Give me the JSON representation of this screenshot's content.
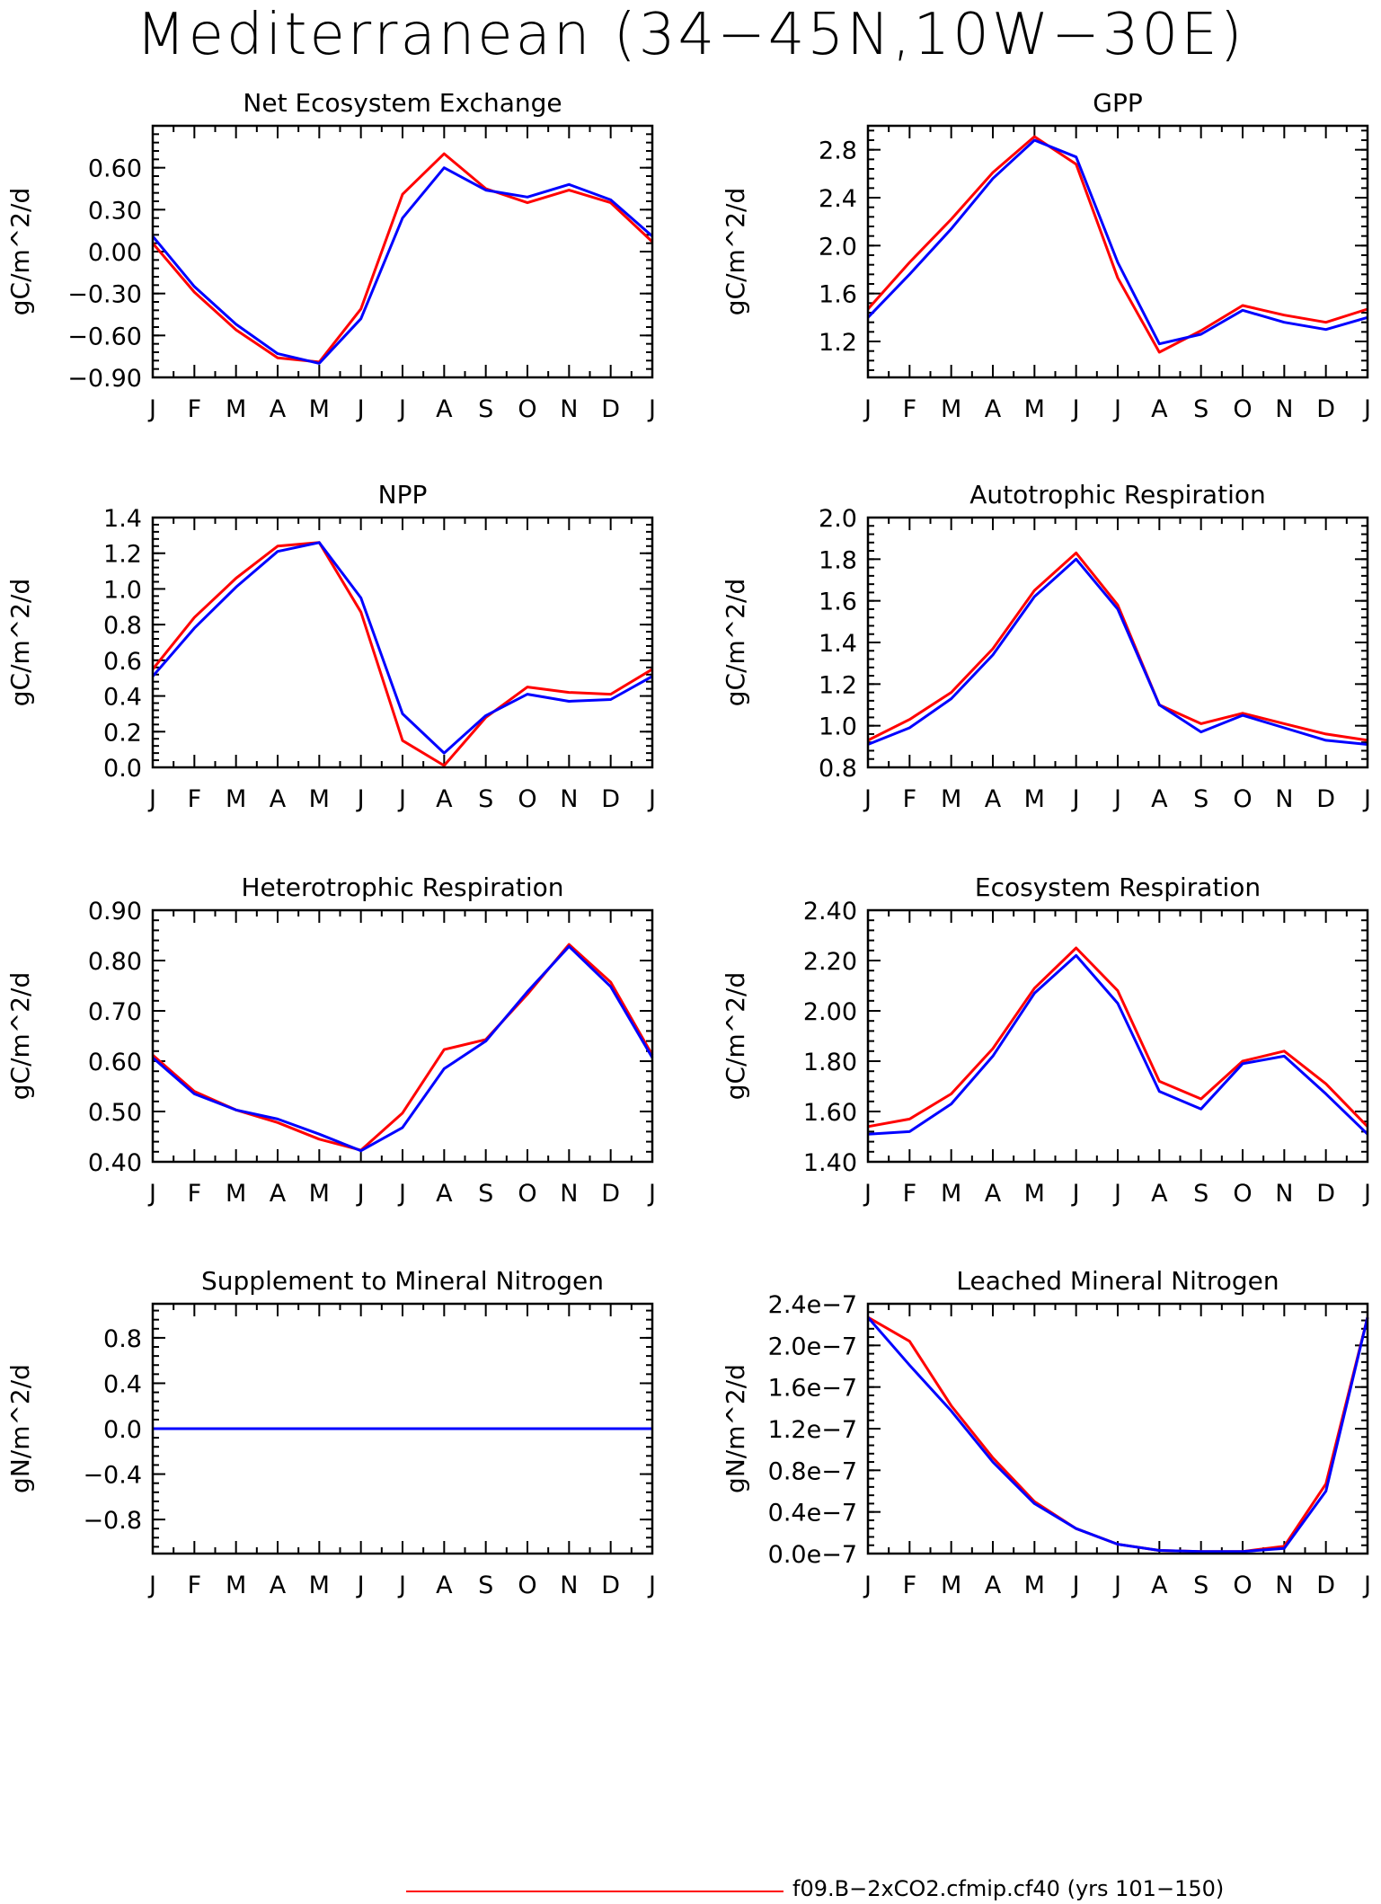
{
  "figure": {
    "title": "Mediterranean (34−45N,10W−30E)"
  },
  "legend": {
    "entries": [
      {
        "label": "f09.B−2xCO2.cfmip.cf40 (yrs 101−150)",
        "color": "#ff0000"
      }
    ]
  },
  "colors": {
    "series_a": "#ff0000",
    "series_b": "#0000ff"
  },
  "chart_data": [
    {
      "type": "line",
      "title": "Net Ecosystem Exchange",
      "ylabel": "gC/m^2/d",
      "categories": [
        "J",
        "F",
        "M",
        "A",
        "M",
        "J",
        "J",
        "A",
        "S",
        "O",
        "N",
        "D",
        "J"
      ],
      "ylim": [
        -0.9,
        0.9
      ],
      "yticks": [
        -0.9,
        -0.6,
        -0.3,
        0.0,
        0.3,
        0.6
      ],
      "ytick_labels": [
        "−0.90",
        "−0.60",
        "−0.30",
        "0.00",
        "0.30",
        "0.60"
      ],
      "series": [
        {
          "color": "#ff0000",
          "values": [
            0.06,
            -0.29,
            -0.56,
            -0.76,
            -0.79,
            -0.41,
            0.41,
            0.7,
            0.45,
            0.35,
            0.44,
            0.35,
            0.07
          ]
        },
        {
          "color": "#0000ff",
          "values": [
            0.11,
            -0.25,
            -0.52,
            -0.73,
            -0.8,
            -0.48,
            0.24,
            0.6,
            0.44,
            0.39,
            0.48,
            0.37,
            0.11
          ]
        }
      ]
    },
    {
      "type": "line",
      "title": "GPP",
      "ylabel": "gC/m^2/d",
      "categories": [
        "J",
        "F",
        "M",
        "A",
        "M",
        "J",
        "J",
        "A",
        "S",
        "O",
        "N",
        "D",
        "J"
      ],
      "ylim": [
        0.9,
        3.0
      ],
      "yticks": [
        1.2,
        1.6,
        2.0,
        2.4,
        2.8
      ],
      "ytick_labels": [
        "1.2",
        "1.6",
        "2.0",
        "2.4",
        "2.8"
      ],
      "series": [
        {
          "color": "#ff0000",
          "values": [
            1.47,
            1.86,
            2.22,
            2.61,
            2.91,
            2.68,
            1.73,
            1.11,
            1.29,
            1.5,
            1.42,
            1.36,
            1.47
          ]
        },
        {
          "color": "#0000ff",
          "values": [
            1.4,
            1.76,
            2.14,
            2.56,
            2.88,
            2.74,
            1.86,
            1.18,
            1.26,
            1.46,
            1.36,
            1.3,
            1.4
          ]
        }
      ]
    },
    {
      "type": "line",
      "title": "NPP",
      "ylabel": "gC/m^2/d",
      "categories": [
        "J",
        "F",
        "M",
        "A",
        "M",
        "J",
        "J",
        "A",
        "S",
        "O",
        "N",
        "D",
        "J"
      ],
      "ylim": [
        0.0,
        1.4
      ],
      "yticks": [
        0.0,
        0.2,
        0.4,
        0.6,
        0.8,
        1.0,
        1.2,
        1.4
      ],
      "ytick_labels": [
        "0.0",
        "0.2",
        "0.4",
        "0.6",
        "0.8",
        "1.0",
        "1.2",
        "1.4"
      ],
      "series": [
        {
          "color": "#ff0000",
          "values": [
            0.55,
            0.84,
            1.06,
            1.24,
            1.26,
            0.87,
            0.15,
            0.01,
            0.28,
            0.45,
            0.42,
            0.41,
            0.55
          ]
        },
        {
          "color": "#0000ff",
          "values": [
            0.51,
            0.78,
            1.01,
            1.21,
            1.26,
            0.95,
            0.3,
            0.08,
            0.29,
            0.41,
            0.37,
            0.38,
            0.51
          ]
        }
      ]
    },
    {
      "type": "line",
      "title": "Autotrophic Respiration",
      "ylabel": "gC/m^2/d",
      "categories": [
        "J",
        "F",
        "M",
        "A",
        "M",
        "J",
        "J",
        "A",
        "S",
        "O",
        "N",
        "D",
        "J"
      ],
      "ylim": [
        0.8,
        2.0
      ],
      "yticks": [
        0.8,
        1.0,
        1.2,
        1.4,
        1.6,
        1.8,
        2.0
      ],
      "ytick_labels": [
        "0.8",
        "1.0",
        "1.2",
        "1.4",
        "1.6",
        "1.8",
        "2.0"
      ],
      "series": [
        {
          "color": "#ff0000",
          "values": [
            0.93,
            1.03,
            1.16,
            1.37,
            1.65,
            1.83,
            1.58,
            1.1,
            1.01,
            1.06,
            1.01,
            0.96,
            0.93
          ]
        },
        {
          "color": "#0000ff",
          "values": [
            0.91,
            0.99,
            1.13,
            1.34,
            1.62,
            1.8,
            1.56,
            1.1,
            0.97,
            1.05,
            0.99,
            0.93,
            0.91
          ]
        }
      ]
    },
    {
      "type": "line",
      "title": "Heterotrophic Respiration",
      "ylabel": "gC/m^2/d",
      "categories": [
        "J",
        "F",
        "M",
        "A",
        "M",
        "J",
        "J",
        "A",
        "S",
        "O",
        "N",
        "D",
        "J"
      ],
      "ylim": [
        0.4,
        0.9
      ],
      "yticks": [
        0.4,
        0.5,
        0.6,
        0.7,
        0.8,
        0.9
      ],
      "ytick_labels": [
        "0.40",
        "0.50",
        "0.60",
        "0.70",
        "0.80",
        "0.90"
      ],
      "series": [
        {
          "color": "#ff0000",
          "values": [
            0.612,
            0.54,
            0.503,
            0.478,
            0.445,
            0.423,
            0.497,
            0.623,
            0.643,
            0.733,
            0.832,
            0.757,
            0.612
          ]
        },
        {
          "color": "#0000ff",
          "values": [
            0.607,
            0.535,
            0.503,
            0.485,
            0.455,
            0.422,
            0.468,
            0.585,
            0.64,
            0.738,
            0.828,
            0.748,
            0.607
          ]
        }
      ]
    },
    {
      "type": "line",
      "title": "Ecosystem Respiration",
      "ylabel": "gC/m^2/d",
      "categories": [
        "J",
        "F",
        "M",
        "A",
        "M",
        "J",
        "J",
        "A",
        "S",
        "O",
        "N",
        "D",
        "J"
      ],
      "ylim": [
        1.4,
        2.4
      ],
      "yticks": [
        1.4,
        1.6,
        1.8,
        2.0,
        2.2,
        2.4
      ],
      "ytick_labels": [
        "1.40",
        "1.60",
        "1.80",
        "2.00",
        "2.20",
        "2.40"
      ],
      "series": [
        {
          "color": "#ff0000",
          "values": [
            1.54,
            1.57,
            1.67,
            1.85,
            2.09,
            2.25,
            2.08,
            1.72,
            1.65,
            1.8,
            1.84,
            1.71,
            1.54
          ]
        },
        {
          "color": "#0000ff",
          "values": [
            1.51,
            1.52,
            1.63,
            1.82,
            2.07,
            2.22,
            2.03,
            1.68,
            1.61,
            1.79,
            1.82,
            1.67,
            1.51
          ]
        }
      ]
    },
    {
      "type": "line",
      "title": "Supplement to Mineral Nitrogen",
      "ylabel": "gN/m^2/d",
      "categories": [
        "J",
        "F",
        "M",
        "A",
        "M",
        "J",
        "J",
        "A",
        "S",
        "O",
        "N",
        "D",
        "J"
      ],
      "ylim": [
        -1.1,
        1.1
      ],
      "yticks": [
        -0.8,
        -0.4,
        0.0,
        0.4,
        0.8
      ],
      "ytick_labels": [
        "−0.8",
        "−0.4",
        "0.0",
        "0.4",
        "0.8"
      ],
      "series": [
        {
          "color": "#ff0000",
          "values": [
            0,
            0,
            0,
            0,
            0,
            0,
            0,
            0,
            0,
            0,
            0,
            0,
            0
          ]
        },
        {
          "color": "#0000ff",
          "values": [
            0,
            0,
            0,
            0,
            0,
            0,
            0,
            0,
            0,
            0,
            0,
            0,
            0
          ]
        }
      ]
    },
    {
      "type": "line",
      "title": "Leached Mineral Nitrogen",
      "ylabel": "gN/m^2/d",
      "categories": [
        "J",
        "F",
        "M",
        "A",
        "M",
        "J",
        "J",
        "A",
        "S",
        "O",
        "N",
        "D",
        "J"
      ],
      "ylim": [
        0.0,
        2.4e-07
      ],
      "yticks": [
        0.0,
        4e-08,
        8e-08,
        1.2e-07,
        1.6e-07,
        2e-07,
        2.4e-07
      ],
      "ytick_labels": [
        "0.0e−7",
        "0.4e−7",
        "0.8e−7",
        "1.2e−7",
        "1.6e−7",
        "2.0e−7",
        "2.4e−7"
      ],
      "series": [
        {
          "color": "#ff0000",
          "values": [
            2.27e-07,
            2.04e-07,
            1.42e-07,
            9.2e-08,
            5e-08,
            2.4e-08,
            9e-09,
            3e-09,
            2e-09,
            2e-09,
            7e-09,
            6.7e-08,
            2.27e-07
          ]
        },
        {
          "color": "#0000ff",
          "values": [
            2.27e-07,
            1.81e-07,
            1.37e-07,
            8.8e-08,
            4.8e-08,
            2.4e-08,
            9e-09,
            3e-09,
            2e-09,
            2e-09,
            5e-09,
            6e-08,
            2.27e-07
          ]
        }
      ]
    }
  ]
}
